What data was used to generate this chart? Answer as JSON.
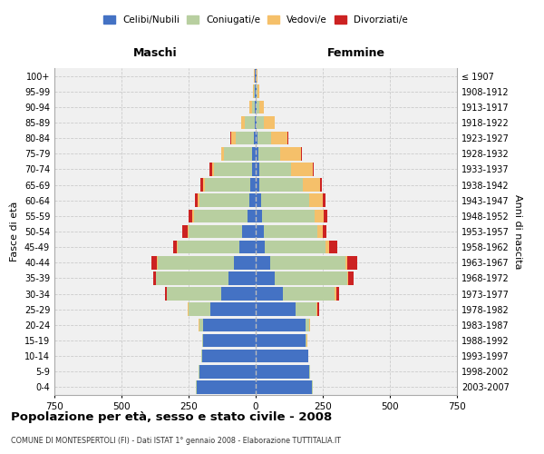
{
  "age_groups": [
    "0-4",
    "5-9",
    "10-14",
    "15-19",
    "20-24",
    "25-29",
    "30-34",
    "35-39",
    "40-44",
    "45-49",
    "50-54",
    "55-59",
    "60-64",
    "65-69",
    "70-74",
    "75-79",
    "80-84",
    "85-89",
    "90-94",
    "95-99",
    "100+"
  ],
  "birth_years": [
    "2003-2007",
    "1998-2002",
    "1993-1997",
    "1988-1992",
    "1983-1987",
    "1978-1982",
    "1973-1977",
    "1968-1972",
    "1963-1967",
    "1958-1962",
    "1953-1957",
    "1948-1952",
    "1943-1947",
    "1938-1942",
    "1933-1937",
    "1928-1932",
    "1923-1927",
    "1918-1922",
    "1913-1917",
    "1908-1912",
    "≤ 1907"
  ],
  "male": {
    "celibi": [
      220,
      210,
      200,
      195,
      195,
      170,
      130,
      100,
      80,
      60,
      50,
      30,
      25,
      20,
      15,
      12,
      8,
      5,
      3,
      2,
      2
    ],
    "coniugati": [
      2,
      2,
      2,
      5,
      15,
      80,
      200,
      270,
      285,
      230,
      200,
      200,
      185,
      170,
      140,
      105,
      65,
      35,
      12,
      5,
      3
    ],
    "vedovi": [
      0,
      0,
      0,
      1,
      2,
      2,
      2,
      2,
      2,
      3,
      5,
      5,
      5,
      6,
      8,
      10,
      18,
      15,
      8,
      3,
      1
    ],
    "divorziati": [
      0,
      0,
      0,
      0,
      2,
      3,
      5,
      10,
      20,
      15,
      20,
      15,
      12,
      10,
      8,
      3,
      2,
      0,
      0,
      0,
      0
    ]
  },
  "female": {
    "nubili": [
      210,
      200,
      195,
      185,
      185,
      150,
      100,
      70,
      55,
      35,
      30,
      25,
      20,
      15,
      12,
      10,
      8,
      5,
      3,
      2,
      2
    ],
    "coniugate": [
      2,
      2,
      2,
      5,
      15,
      75,
      195,
      270,
      280,
      225,
      200,
      195,
      180,
      160,
      120,
      80,
      50,
      25,
      10,
      5,
      3
    ],
    "vedove": [
      0,
      0,
      0,
      1,
      2,
      5,
      5,
      5,
      5,
      15,
      20,
      35,
      50,
      65,
      80,
      80,
      60,
      40,
      18,
      5,
      2
    ],
    "divorziate": [
      0,
      0,
      0,
      0,
      2,
      5,
      10,
      20,
      40,
      30,
      15,
      12,
      10,
      8,
      5,
      3,
      2,
      2,
      0,
      0,
      0
    ]
  },
  "colors": {
    "celibi": "#4472c4",
    "coniugati": "#b8cfa0",
    "vedovi": "#f5c06a",
    "divorziati": "#cc2222"
  },
  "xlim": 750,
  "title": "Popolazione per età, sesso e stato civile - 2008",
  "subtitle": "COMUNE DI MONTESPERTOLI (FI) - Dati ISTAT 1° gennaio 2008 - Elaborazione TUTTITALIA.IT",
  "ylabel_left": "Fasce di età",
  "ylabel_right": "Anni di nascita",
  "xlabel_male": "Maschi",
  "xlabel_female": "Femmine",
  "bg_color": "#f0f0f0",
  "grid_color": "#cccccc",
  "legend": [
    "Celibi/Nubili",
    "Coniugati/e",
    "Vedovi/e",
    "Divorziati/e"
  ]
}
